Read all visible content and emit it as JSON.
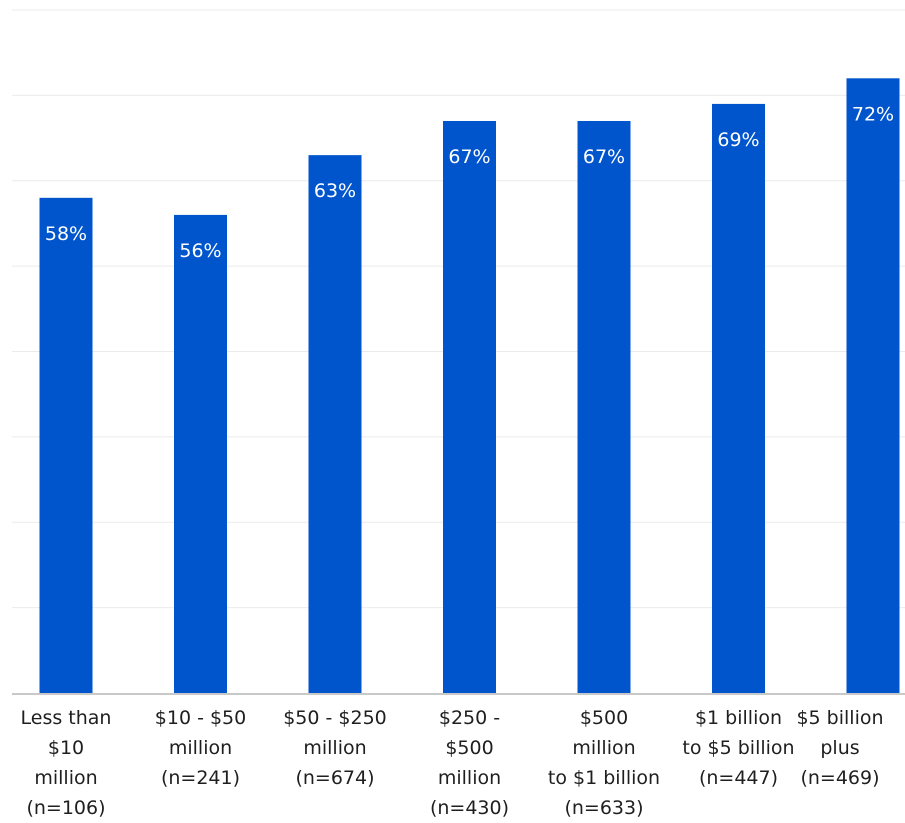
{
  "chart_data": {
    "type": "bar",
    "categories": [
      "Less than\n$10\nmillion\n(n=106)",
      "$10 - $50\nmillion\n(n=241)",
      "$50 - $250\nmillion\n(n=674)",
      "$250 -\n$500\nmillion\n(n=430)",
      "$500\nmillion\nto $1 billion\n(n=633)",
      "$1 billion\nto $5 billion\n(n=447)",
      "$5 billion\nplus\n(n=469)"
    ],
    "values": [
      58,
      56,
      63,
      67,
      67,
      69,
      72
    ],
    "value_labels": [
      "58%",
      "56%",
      "63%",
      "67%",
      "67%",
      "69%",
      "72%"
    ],
    "ylim": [
      0,
      80
    ],
    "grid": true,
    "bar_color": "#0055cc"
  }
}
